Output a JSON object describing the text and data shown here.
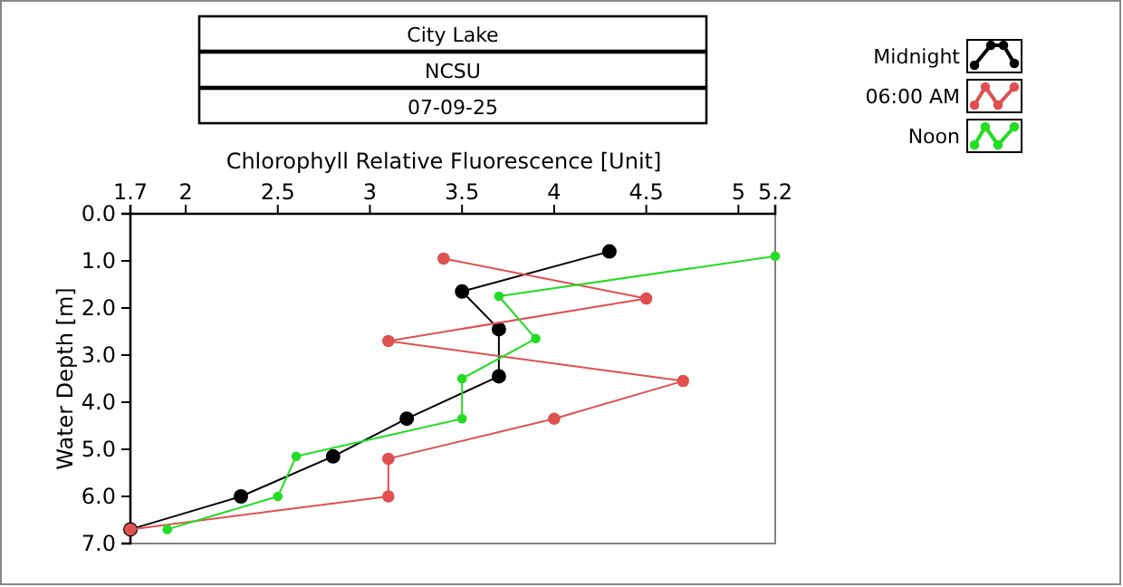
{
  "chart_data": {
    "type": "line",
    "title": "City Lake",
    "subtitle": "NCSU",
    "annotations": [
      "07-09-25"
    ],
    "xlabel": "Chlorophyll Relative Fluorescence [Unit]",
    "ylabel": "Water Depth [m]",
    "xlim": [
      1.7,
      5.2
    ],
    "xticks": [
      1.7,
      2,
      2.5,
      3,
      3.5,
      4,
      4.5,
      5,
      5.2
    ],
    "ylim": [
      7,
      0
    ],
    "yticks": [
      {
        "value": 0,
        "label": "0.0"
      },
      {
        "value": 1,
        "label": "1.0"
      },
      {
        "value": 2,
        "label": "2.0"
      },
      {
        "value": 3,
        "label": "3.0"
      },
      {
        "value": 4,
        "label": "4.0"
      },
      {
        "value": 5,
        "label": "5.0"
      },
      {
        "value": 6,
        "label": "6.0"
      },
      {
        "value": 7,
        "label": "7.0"
      }
    ],
    "grid": false,
    "legend": "top right",
    "marker": "circle",
    "line_style": "solid",
    "series": [
      {
        "name": "Midnight",
        "color": "#000000",
        "x": [
          4.3,
          3.5,
          3.7,
          3.7,
          3.2,
          2.8,
          2.3,
          1.7
        ],
        "values": [
          0.8,
          1.65,
          2.45,
          3.45,
          4.35,
          5.15,
          6.0,
          6.7
        ]
      },
      {
        "name": "06:00 AM",
        "color": "#e05050",
        "x": [
          3.4,
          4.5,
          3.1,
          4.7,
          4.0,
          3.1,
          3.1,
          1.7
        ],
        "values": [
          0.95,
          1.8,
          2.7,
          3.55,
          4.35,
          5.2,
          6.0,
          6.7
        ]
      },
      {
        "name": "Noon",
        "color": "#22dd22",
        "x": [
          5.2,
          3.7,
          3.9,
          3.5,
          3.5,
          2.6,
          2.5,
          1.9
        ],
        "values": [
          0.9,
          1.75,
          2.65,
          3.5,
          4.35,
          5.15,
          6.0,
          6.7
        ]
      }
    ]
  }
}
